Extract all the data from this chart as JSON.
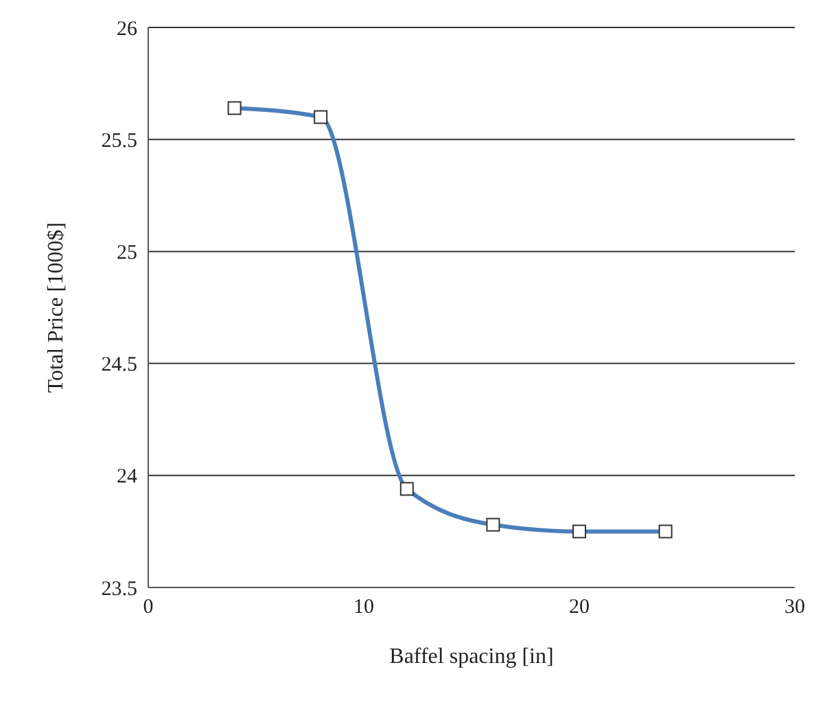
{
  "chart_data": {
    "type": "line",
    "xlabel": "Baffel spacing [in]",
    "ylabel": "Total Price [1000$]",
    "x": [
      4,
      8,
      12,
      16,
      20,
      24
    ],
    "series": [
      {
        "color": "#4a7ebb",
        "values": [
          25.64,
          25.6,
          23.94,
          23.78,
          23.75,
          23.75
        ]
      }
    ],
    "xlim": [
      0,
      30
    ],
    "xticks": [
      0,
      10,
      20,
      30
    ],
    "ylim": [
      23.5,
      26
    ],
    "yticks": [
      23.5,
      24,
      24.5,
      25,
      25.5,
      26
    ],
    "grid": "y",
    "marker": "square",
    "line_style": "solid",
    "legend": false
  }
}
